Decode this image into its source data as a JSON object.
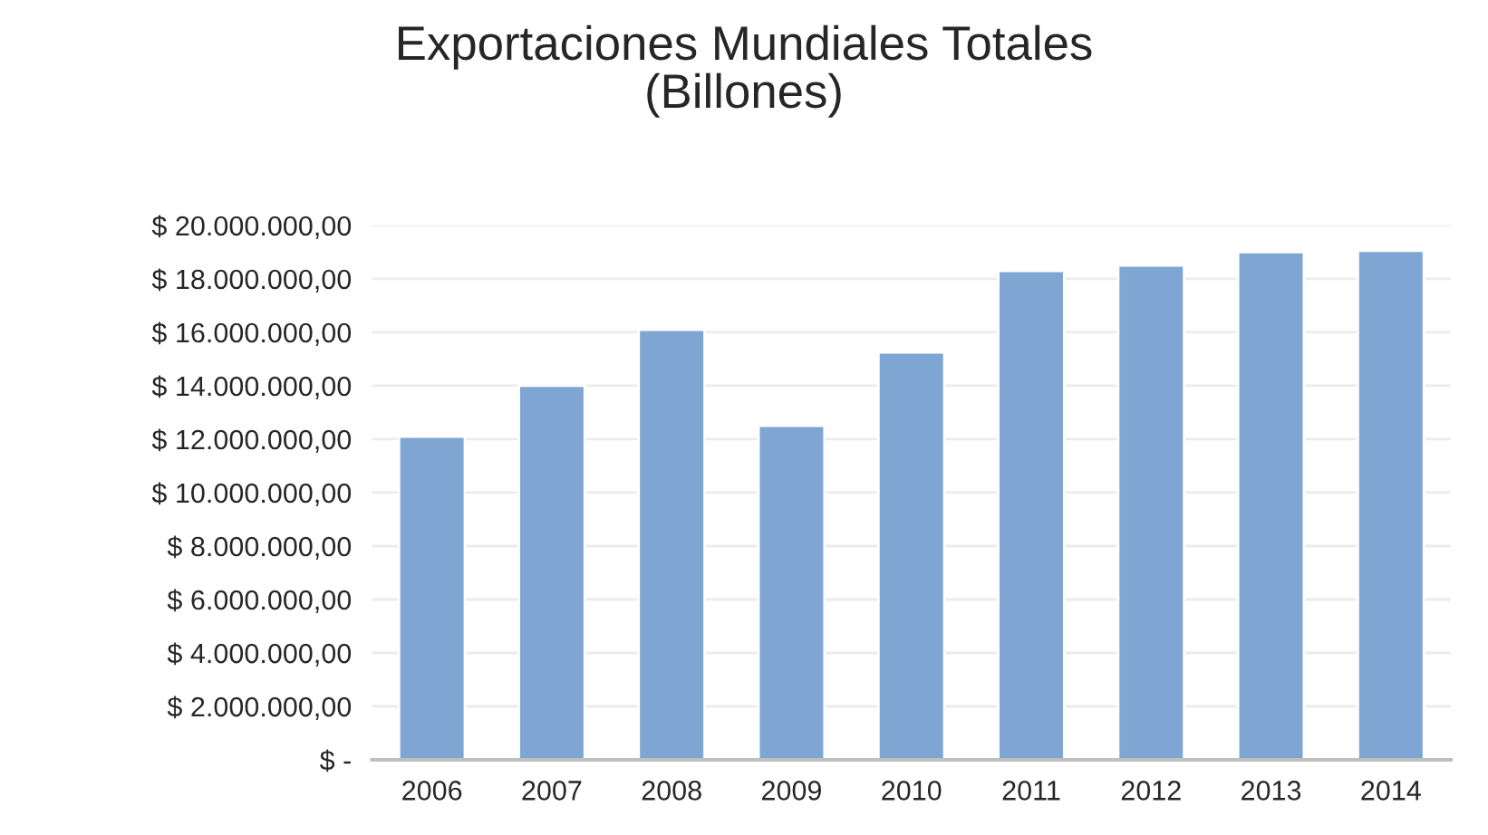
{
  "chart_data": {
    "type": "bar",
    "title": "Exportaciones Mundiales Totales\n(Billones)",
    "categories": [
      "2006",
      "2007",
      "2008",
      "2009",
      "2010",
      "2011",
      "2012",
      "2013",
      "2014"
    ],
    "values": [
      12100000,
      14000000,
      16100000,
      12500000,
      15250000,
      18300000,
      18500000,
      19000000,
      19050000
    ],
    "color": "#7fa6d2",
    "ylim": [
      0,
      20000000
    ],
    "yticks": [
      {
        "value": 0,
        "label": "$ -"
      },
      {
        "value": 2000000,
        "label": "$ 2.000.000,00"
      },
      {
        "value": 4000000,
        "label": "$ 4.000.000,00"
      },
      {
        "value": 6000000,
        "label": "$ 6.000.000,00"
      },
      {
        "value": 8000000,
        "label": "$ 8.000.000,00"
      },
      {
        "value": 10000000,
        "label": "$ 10.000.000,00"
      },
      {
        "value": 12000000,
        "label": "$ 12.000.000,00"
      },
      {
        "value": 14000000,
        "label": "$ 14.000.000,00"
      },
      {
        "value": 16000000,
        "label": "$ 16.000.000,00"
      },
      {
        "value": 18000000,
        "label": "$ 18.000.000,00"
      },
      {
        "value": 20000000,
        "label": "$ 20.000.000,00"
      }
    ],
    "grid": "y"
  }
}
